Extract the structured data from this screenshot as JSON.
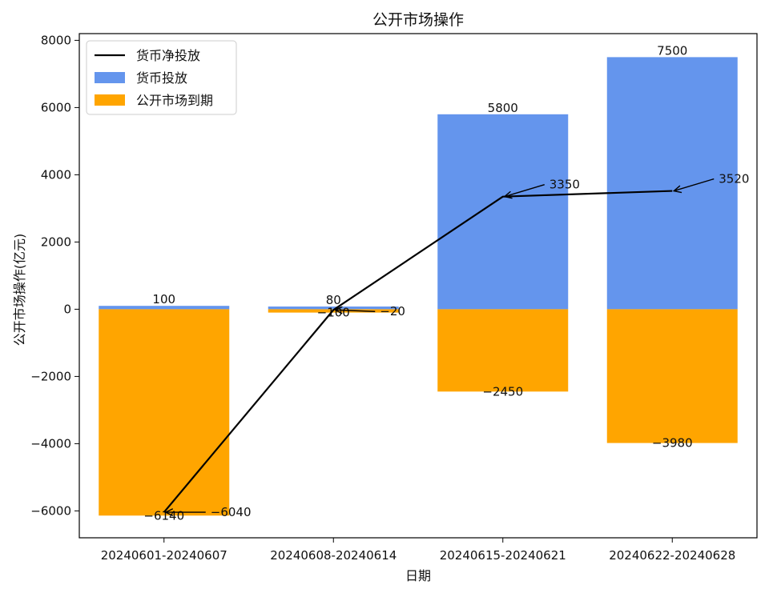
{
  "chart_data": {
    "type": "bar",
    "title": "公开市场操作",
    "xlabel": "日期",
    "ylabel": "公开市场操作(亿元)",
    "categories": [
      "20240601-20240607",
      "20240608-20240614",
      "20240615-20240621",
      "20240622-20240628"
    ],
    "ylim": [
      -6800,
      8200
    ],
    "yticks": [
      -6000,
      -4000,
      -2000,
      0,
      2000,
      4000,
      6000,
      8000
    ],
    "ytick_labels": [
      "−6000",
      "−4000",
      "−2000",
      "0",
      "2000",
      "4000",
      "6000",
      "8000"
    ],
    "legend_position": "top-left",
    "grid": false,
    "series": [
      {
        "name": "货币投放",
        "kind": "bar",
        "color": "#6495ED",
        "values": [
          100,
          80,
          5800,
          7500
        ],
        "labels": [
          "100",
          "80",
          "5800",
          "7500"
        ]
      },
      {
        "name": "公开市场到期",
        "kind": "bar",
        "color": "#FFA500",
        "values": [
          -6140,
          -100,
          -2450,
          -3980
        ],
        "labels": [
          "−6140",
          "−100",
          "−2450",
          "−3980"
        ]
      },
      {
        "name": "货币净投放",
        "kind": "line",
        "color": "#000000",
        "values": [
          -6040,
          -20,
          3350,
          3520
        ],
        "labels": [
          "−6040",
          "−20",
          "3350",
          "3520"
        ]
      }
    ]
  }
}
